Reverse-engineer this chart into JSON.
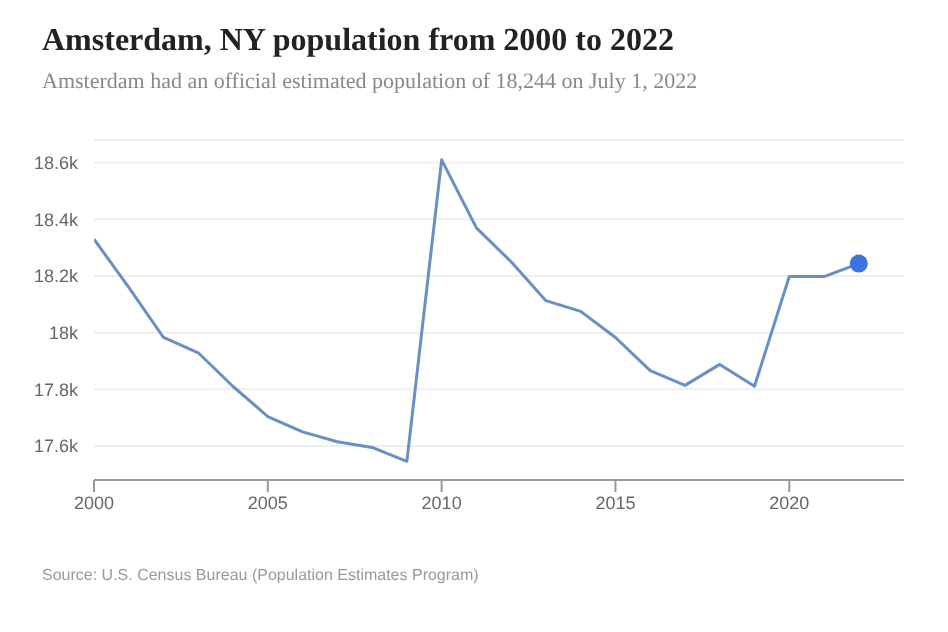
{
  "chart_data": {
    "type": "line",
    "title": "Amsterdam, NY population from 2000 to 2022",
    "subtitle": "Amsterdam had an official estimated population of 18,244 on July 1, 2022",
    "annotations": [
      "Source: U.S. Census Bureau (Population Estimates Program)"
    ],
    "x": [
      2000,
      2001,
      2002,
      2003,
      2004,
      2005,
      2006,
      2007,
      2008,
      2009,
      2010,
      2011,
      2012,
      2013,
      2014,
      2015,
      2016,
      2017,
      2018,
      2019,
      2020,
      2021,
      2022
    ],
    "series": [
      {
        "color": "#6b8fc4",
        "values": [
          18330,
          18160,
          17983,
          17929,
          17810,
          17704,
          17650,
          17615,
          17595,
          17546,
          18610,
          18370,
          18250,
          18113,
          18075,
          17983,
          17866,
          17814,
          17888,
          17811,
          18198,
          18198,
          18244
        ]
      },
      {
        "type": "scatter",
        "color": "#3b73e0",
        "x": [
          2022
        ],
        "values": [
          18244
        ]
      }
    ],
    "xlim": [
      2000,
      2023.3
    ],
    "xticks": [
      2000,
      2005,
      2010,
      2015,
      2020
    ],
    "ylim": [
      17480,
      18680
    ],
    "yticks": [
      {
        "value": 17600,
        "label": "17.6k"
      },
      {
        "value": 17800,
        "label": "17.8k"
      },
      {
        "value": 18000,
        "label": "18k"
      },
      {
        "value": 18200,
        "label": "18.2k"
      },
      {
        "value": 18400,
        "label": "18.4k"
      },
      {
        "value": 18600,
        "label": "18.6k"
      }
    ],
    "grid": "y"
  }
}
